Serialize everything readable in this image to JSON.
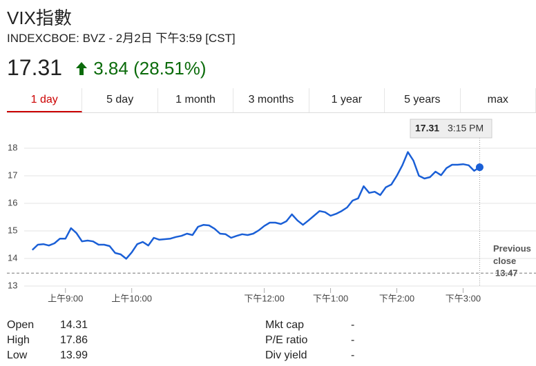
{
  "header": {
    "title": "VIX指數",
    "exchange_line": "INDEXCBOE: BVZ - 2月2日 下午3:59 [CST]"
  },
  "quote": {
    "price": "17.31",
    "change": "3.84",
    "change_pct": "(28.51%)"
  },
  "tabs": [
    "1 day",
    "5 day",
    "1 month",
    "3 months",
    "1 year",
    "5 years",
    "max"
  ],
  "active_tab": 0,
  "chart_data": {
    "type": "line",
    "color": "#1a5fd6",
    "x": [
      510,
      515,
      520,
      525,
      530,
      535,
      540,
      545,
      550,
      555,
      560,
      565,
      570,
      575,
      580,
      585,
      590,
      595,
      600,
      605,
      610,
      615,
      620,
      625,
      630,
      635,
      640,
      645,
      650,
      655,
      660,
      665,
      670,
      675,
      680,
      685,
      690,
      695,
      700,
      705,
      710,
      715,
      720,
      725,
      730,
      735,
      740,
      745,
      750,
      755,
      760,
      765,
      770,
      775,
      780,
      785,
      790,
      795,
      800,
      805,
      810,
      815,
      820,
      825,
      830,
      835,
      840,
      845,
      850,
      855,
      860,
      865,
      870,
      875,
      880,
      885,
      890,
      895,
      900,
      905,
      910,
      915
    ],
    "values": [
      14.31,
      14.5,
      14.52,
      14.47,
      14.55,
      14.72,
      14.72,
      15.1,
      14.92,
      14.62,
      14.65,
      14.62,
      14.5,
      14.5,
      14.45,
      14.2,
      14.15,
      13.99,
      14.22,
      14.52,
      14.6,
      14.47,
      14.75,
      14.68,
      14.7,
      14.72,
      14.78,
      14.82,
      14.9,
      14.85,
      15.15,
      15.22,
      15.2,
      15.08,
      14.9,
      14.88,
      14.75,
      14.82,
      14.88,
      14.85,
      14.9,
      15.02,
      15.18,
      15.3,
      15.3,
      15.25,
      15.35,
      15.6,
      15.38,
      15.22,
      15.38,
      15.55,
      15.72,
      15.68,
      15.55,
      15.62,
      15.72,
      15.85,
      16.1,
      16.18,
      16.62,
      16.38,
      16.42,
      16.3,
      16.58,
      16.68,
      17.0,
      17.38,
      17.86,
      17.55,
      17.0,
      16.9,
      16.95,
      17.15,
      17.02,
      17.28,
      17.4,
      17.4,
      17.42,
      17.38,
      17.18,
      17.31
    ],
    "xlim": [
      487,
      966
    ],
    "xticks": [
      {
        "value": 540,
        "label": "上午9:00"
      },
      {
        "value": 600,
        "label": "上午10:00"
      },
      {
        "value": 720,
        "label": "下午12:00"
      },
      {
        "value": 780,
        "label": "下午1:00"
      },
      {
        "value": 840,
        "label": "下午2:00"
      },
      {
        "value": 900,
        "label": "下午3:00"
      }
    ],
    "ylim": [
      13,
      18
    ],
    "yticks": [
      13,
      14,
      15,
      16,
      17,
      18
    ],
    "grid": true,
    "previous_close": {
      "label": "Previous close",
      "value": 13.47
    },
    "tooltip": {
      "value": 17.31,
      "time": "3:15 PM"
    }
  },
  "stats": {
    "left": [
      [
        "Open",
        "14.31"
      ],
      [
        "High",
        "17.86"
      ],
      [
        "Low",
        "13.99"
      ]
    ],
    "right": [
      [
        "Mkt cap",
        "-"
      ],
      [
        "P/E ratio",
        "-"
      ],
      [
        "Div yield",
        "-"
      ]
    ]
  }
}
